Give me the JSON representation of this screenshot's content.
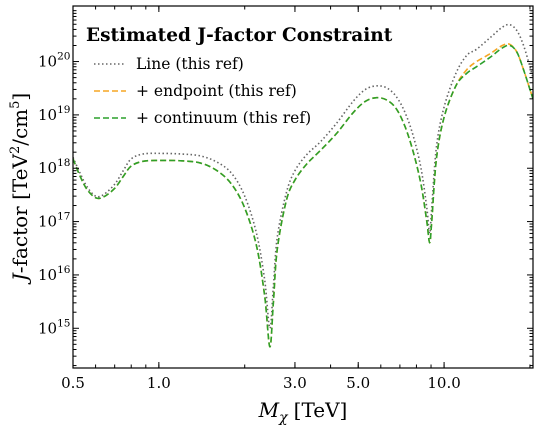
{
  "chart_data": {
    "type": "line",
    "title": "Estimated J-factor Constraint",
    "xlabel": "M_χ [TeV]",
    "xlabel_parts": {
      "main": "M",
      "sub": "χ",
      "unit": "[TeV]"
    },
    "ylabel": "J-factor [TeV²/cm⁵]",
    "ylabel_parts": {
      "italic": "J",
      "rest": "-factor [TeV",
      "sup1": "2",
      "mid": "/cm",
      "sup2": "5",
      "end": "]"
    },
    "x_scale": "log",
    "y_scale": "log",
    "xlim": [
      0.5,
      20.5
    ],
    "ylim": [
      180000000000000.0,
      1.1e+21
    ],
    "x_ticks": [
      {
        "value": 0.5,
        "label": "0.5"
      },
      {
        "value": 1.0,
        "label": "1.0"
      },
      {
        "value": 3.0,
        "label": "3.0"
      },
      {
        "value": 5.0,
        "label": "5.0"
      },
      {
        "value": 10.0,
        "label": "10.0"
      }
    ],
    "y_ticks": [
      {
        "value": 1000000000000000.0,
        "base": "10",
        "exp": "15"
      },
      {
        "value": 1e+16,
        "base": "10",
        "exp": "16"
      },
      {
        "value": 1e+17,
        "base": "10",
        "exp": "17"
      },
      {
        "value": 1e+18,
        "base": "10",
        "exp": "18"
      },
      {
        "value": 1e+19,
        "base": "10",
        "exp": "19"
      },
      {
        "value": 1e+20,
        "base": "10",
        "exp": "20"
      }
    ],
    "legend_position": "top-left",
    "grid": false,
    "series": [
      {
        "name": "Line (this ref)",
        "color": "#666666",
        "dash": "dotted",
        "points": [
          [
            0.5,
            1.6e+18
          ],
          [
            0.53,
            8e+17
          ],
          [
            0.56,
            4.5e+17
          ],
          [
            0.6,
            3e+17
          ],
          [
            0.64,
            3.2e+17
          ],
          [
            0.7,
            5e+17
          ],
          [
            0.75,
            9e+17
          ],
          [
            0.8,
            1.5e+18
          ],
          [
            0.88,
            1.85e+18
          ],
          [
            1.0,
            1.9e+18
          ],
          [
            1.2,
            1.85e+18
          ],
          [
            1.4,
            1.7e+18
          ],
          [
            1.6,
            1.3e+18
          ],
          [
            1.8,
            8e+17
          ],
          [
            2.0,
            3e+17
          ],
          [
            2.2,
            6e+16
          ],
          [
            2.35,
            8000000000000000.0
          ],
          [
            2.45,
            1000000000000000.0
          ],
          [
            2.52,
            6000000000000000.0
          ],
          [
            2.6,
            5e+16
          ],
          [
            2.8,
            3.5e+17
          ],
          [
            3.0,
            9e+17
          ],
          [
            3.3,
            1.8e+18
          ],
          [
            3.7,
            3.2e+18
          ],
          [
            4.2,
            7e+18
          ],
          [
            4.8,
            1.8e+19
          ],
          [
            5.3,
            3e+19
          ],
          [
            5.8,
            3.5e+19
          ],
          [
            6.3,
            3.2e+19
          ],
          [
            6.8,
            2.2e+19
          ],
          [
            7.3,
            1.1e+19
          ],
          [
            7.8,
            4e+18
          ],
          [
            8.3,
            1e+18
          ],
          [
            8.7,
            1.8e+17
          ],
          [
            8.9,
            6e+16
          ],
          [
            9.05,
            1.8e+17
          ],
          [
            9.4,
            2.5e+18
          ],
          [
            10.0,
            1.4e+19
          ],
          [
            11.0,
            6e+19
          ],
          [
            12.0,
            1.3e+20
          ],
          [
            13.0,
            1.7e+20
          ],
          [
            14.5,
            2.8e+20
          ],
          [
            16.0,
            4.4e+20
          ],
          [
            17.0,
            4.9e+20
          ],
          [
            18.0,
            3.8e+20
          ],
          [
            19.0,
            2e+20
          ],
          [
            20.0,
            8e+19
          ],
          [
            20.5,
            5e+19
          ]
        ]
      },
      {
        "name": "+ endpoint (this ref)",
        "color": "#f5a623",
        "dash": "dashed",
        "points": [
          [
            0.5,
            1.5e+18
          ],
          [
            0.53,
            7e+17
          ],
          [
            0.56,
            4e+17
          ],
          [
            0.6,
            2.8e+17
          ],
          [
            0.64,
            2.9e+17
          ],
          [
            0.7,
            4.2e+17
          ],
          [
            0.75,
            7e+17
          ],
          [
            0.8,
            1.1e+18
          ],
          [
            0.88,
            1.35e+18
          ],
          [
            1.0,
            1.4e+18
          ],
          [
            1.2,
            1.38e+18
          ],
          [
            1.4,
            1.25e+18
          ],
          [
            1.6,
            9e+17
          ],
          [
            1.8,
            5e+17
          ],
          [
            2.0,
            1.8e+17
          ],
          [
            2.2,
            3.5e+16
          ],
          [
            2.35,
            4000000000000000.0
          ],
          [
            2.45,
            450000000000000.0
          ],
          [
            2.52,
            3000000000000000.0
          ],
          [
            2.6,
            3e+16
          ],
          [
            2.8,
            2.5e+17
          ],
          [
            3.0,
            6e+17
          ],
          [
            3.3,
            1.2e+18
          ],
          [
            3.7,
            2.2e+18
          ],
          [
            4.2,
            4.5e+18
          ],
          [
            4.8,
            1.1e+19
          ],
          [
            5.3,
            1.8e+19
          ],
          [
            5.8,
            2.1e+19
          ],
          [
            6.3,
            1.9e+19
          ],
          [
            6.8,
            1.3e+19
          ],
          [
            7.3,
            6e+18
          ],
          [
            7.8,
            2e+18
          ],
          [
            8.3,
            5e+17
          ],
          [
            8.7,
            1e+17
          ],
          [
            8.9,
            4e+16
          ],
          [
            9.05,
            1e+17
          ],
          [
            9.4,
            1.5e+18
          ],
          [
            10.0,
            9e+18
          ],
          [
            11.0,
            3.5e+19
          ],
          [
            12.0,
            7e+19
          ],
          [
            13.0,
            1e+20
          ],
          [
            14.5,
            1.4e+20
          ],
          [
            16.0,
            2e+20
          ],
          [
            17.0,
            2.1e+20
          ],
          [
            18.0,
            1.5e+20
          ],
          [
            19.0,
            7e+19
          ],
          [
            20.0,
            3e+19
          ],
          [
            20.5,
            2e+19
          ]
        ]
      },
      {
        "name": "+ continuum (this ref)",
        "color": "#2ca02c",
        "dash": "dashed",
        "points": [
          [
            0.5,
            1.5e+18
          ],
          [
            0.53,
            7e+17
          ],
          [
            0.56,
            4e+17
          ],
          [
            0.6,
            2.8e+17
          ],
          [
            0.64,
            2.9e+17
          ],
          [
            0.7,
            4.2e+17
          ],
          [
            0.75,
            7e+17
          ],
          [
            0.8,
            1.1e+18
          ],
          [
            0.88,
            1.35e+18
          ],
          [
            1.0,
            1.4e+18
          ],
          [
            1.2,
            1.38e+18
          ],
          [
            1.4,
            1.25e+18
          ],
          [
            1.6,
            9e+17
          ],
          [
            1.8,
            5e+17
          ],
          [
            2.0,
            1.8e+17
          ],
          [
            2.2,
            3.5e+16
          ],
          [
            2.35,
            4000000000000000.0
          ],
          [
            2.45,
            450000000000000.0
          ],
          [
            2.52,
            3000000000000000.0
          ],
          [
            2.6,
            3e+16
          ],
          [
            2.8,
            2.5e+17
          ],
          [
            3.0,
            6e+17
          ],
          [
            3.3,
            1.2e+18
          ],
          [
            3.7,
            2.2e+18
          ],
          [
            4.2,
            4.5e+18
          ],
          [
            4.8,
            1.1e+19
          ],
          [
            5.3,
            1.8e+19
          ],
          [
            5.8,
            2.1e+19
          ],
          [
            6.3,
            1.9e+19
          ],
          [
            6.8,
            1.3e+19
          ],
          [
            7.3,
            6e+18
          ],
          [
            7.8,
            2e+18
          ],
          [
            8.3,
            5e+17
          ],
          [
            8.7,
            1e+17
          ],
          [
            8.9,
            4e+16
          ],
          [
            9.05,
            1e+17
          ],
          [
            9.4,
            1.5e+18
          ],
          [
            10.0,
            9e+18
          ],
          [
            11.0,
            3.5e+19
          ],
          [
            12.0,
            6e+19
          ],
          [
            13.0,
            8e+19
          ],
          [
            14.5,
            1.2e+20
          ],
          [
            16.0,
            1.8e+20
          ],
          [
            17.0,
            2e+20
          ],
          [
            18.0,
            1.5e+20
          ],
          [
            19.0,
            7e+19
          ],
          [
            20.0,
            3e+19
          ],
          [
            20.5,
            2e+19
          ]
        ]
      }
    ]
  }
}
